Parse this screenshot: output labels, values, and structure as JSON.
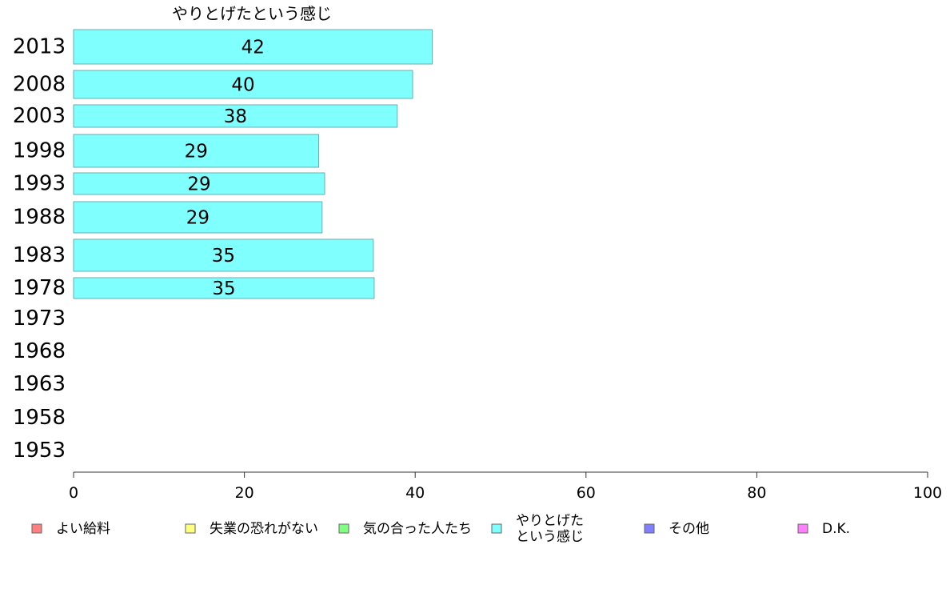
{
  "chart_data": {
    "type": "bar",
    "orientation": "horizontal",
    "title": "やりとげたという感じ",
    "categories": [
      "2013",
      "2008",
      "2003",
      "1998",
      "1993",
      "1988",
      "1983",
      "1978",
      "1973",
      "1968",
      "1963",
      "1958",
      "1953"
    ],
    "series": [
      {
        "name": "やりとげたという感じ",
        "color": "#80ffff",
        "values": [
          42,
          40,
          38,
          29,
          29,
          29,
          35,
          35,
          null,
          null,
          null,
          null,
          null
        ],
        "shown_values": [
          42,
          39.7,
          37.9,
          28.7,
          29.4,
          29.1,
          35.1,
          35.2,
          null,
          null,
          null,
          null,
          null
        ],
        "labels": [
          "42",
          "40",
          "38",
          "29",
          "29",
          "29",
          "35",
          "35",
          "",
          "",
          "",
          "",
          ""
        ]
      }
    ],
    "xlim": [
      0,
      100
    ],
    "x_ticks": [
      "0",
      "20",
      "40",
      "60",
      "80",
      "100"
    ],
    "grid": false,
    "legend": {
      "position": "bottom",
      "items": [
        {
          "label_lines": [
            "よい給料"
          ],
          "color": "#ff8080"
        },
        {
          "label_lines": [
            "失業の恐れがない"
          ],
          "color": "#ffff80"
        },
        {
          "label_lines": [
            "気の合った人たち"
          ],
          "color": "#80ff80"
        },
        {
          "label_lines": [
            "やりとげた",
            "という感じ"
          ],
          "color": "#80ffff"
        },
        {
          "label_lines": [
            "その他"
          ],
          "color": "#8080ff"
        },
        {
          "label_lines": [
            "D.K."
          ],
          "color": "#ff80ff"
        }
      ]
    }
  }
}
